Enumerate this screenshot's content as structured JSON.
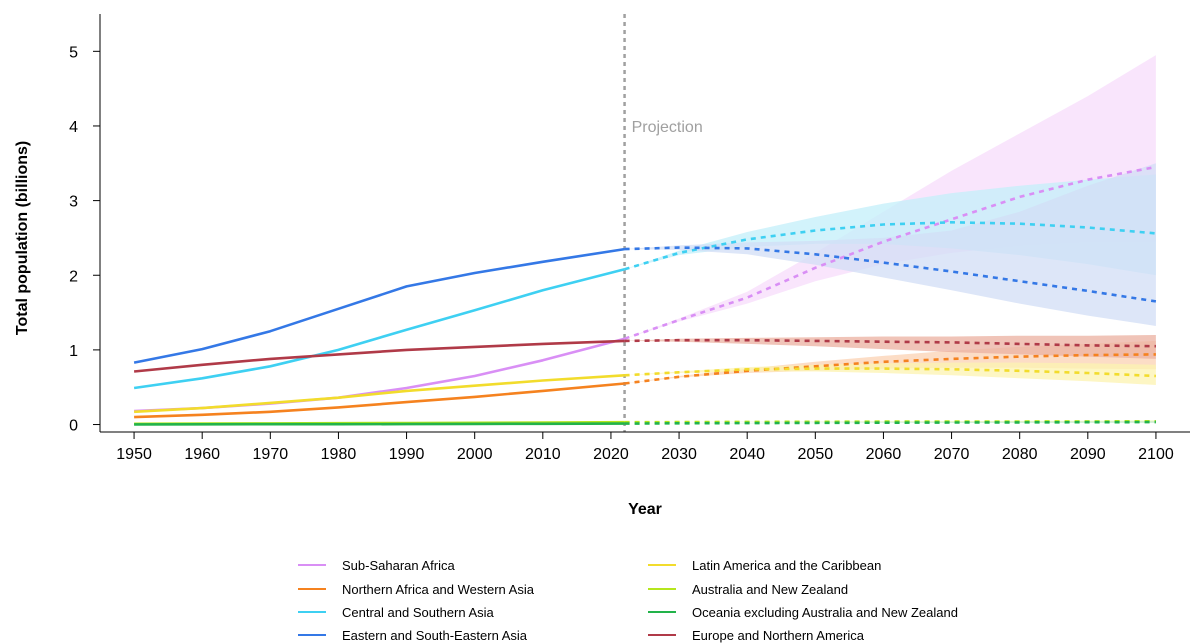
{
  "chart_data": {
    "type": "line",
    "xlabel": "Year",
    "ylabel": "Total population (billions)",
    "xlim": [
      1945,
      2105
    ],
    "ylim": [
      -0.1,
      5.5
    ],
    "x_ticks": [
      1950,
      1960,
      1970,
      1980,
      1990,
      2000,
      2010,
      2020,
      2030,
      2040,
      2050,
      2060,
      2070,
      2080,
      2090,
      2100
    ],
    "y_ticks": [
      0,
      1,
      2,
      3,
      4,
      5
    ],
    "grid": false,
    "legend_position": "bottom",
    "projection_start": 2022,
    "annotation": "Projection",
    "observed_x": [
      1950,
      1960,
      1970,
      1980,
      1990,
      2000,
      2010,
      2022
    ],
    "projected_x": [
      2022,
      2030,
      2040,
      2050,
      2060,
      2070,
      2080,
      2090,
      2100
    ],
    "series": [
      {
        "name": "Sub-Saharan Africa",
        "color": "#d98ff5",
        "band_color": "#f7dcfb",
        "observed": [
          0.18,
          0.22,
          0.28,
          0.36,
          0.49,
          0.65,
          0.86,
          1.15
        ],
        "projected": [
          1.15,
          1.4,
          1.7,
          2.1,
          2.45,
          2.75,
          3.05,
          3.28,
          3.45
        ],
        "lower": [
          1.15,
          1.38,
          1.62,
          1.92,
          2.15,
          2.3,
          2.4,
          2.45,
          2.45
        ],
        "upper": [
          1.15,
          1.42,
          1.78,
          2.3,
          2.85,
          3.4,
          3.9,
          4.4,
          4.95
        ]
      },
      {
        "name": "Northern Africa and Western Asia",
        "color": "#f5821f",
        "band_color": "#fbd2b3",
        "observed": [
          0.1,
          0.13,
          0.17,
          0.23,
          0.3,
          0.37,
          0.45,
          0.55
        ],
        "projected": [
          0.55,
          0.64,
          0.72,
          0.78,
          0.84,
          0.88,
          0.91,
          0.93,
          0.94
        ],
        "lower": [
          0.55,
          0.63,
          0.69,
          0.72,
          0.75,
          0.76,
          0.76,
          0.75,
          0.74
        ],
        "upper": [
          0.55,
          0.65,
          0.75,
          0.84,
          0.92,
          0.99,
          1.04,
          1.08,
          1.12
        ]
      },
      {
        "name": "Central and Southern Asia",
        "color": "#3ed0f2",
        "band_color": "#c3eff9",
        "observed": [
          0.49,
          0.62,
          0.78,
          1.0,
          1.27,
          1.53,
          1.8,
          2.08
        ],
        "projected": [
          2.08,
          2.3,
          2.48,
          2.6,
          2.68,
          2.71,
          2.69,
          2.64,
          2.56
        ],
        "lower": [
          2.08,
          2.27,
          2.38,
          2.42,
          2.42,
          2.36,
          2.27,
          2.15,
          2.0
        ],
        "upper": [
          2.08,
          2.33,
          2.58,
          2.78,
          2.96,
          3.1,
          3.2,
          3.28,
          3.35
        ]
      },
      {
        "name": "Eastern and South-Eastern Asia",
        "color": "#3478e6",
        "band_color": "#d2def6",
        "observed": [
          0.83,
          1.01,
          1.25,
          1.55,
          1.85,
          2.03,
          2.18,
          2.35
        ],
        "projected": [
          2.35,
          2.37,
          2.36,
          2.28,
          2.17,
          2.05,
          1.92,
          1.79,
          1.65
        ],
        "lower": [
          2.35,
          2.34,
          2.28,
          2.14,
          1.97,
          1.8,
          1.62,
          1.46,
          1.32
        ],
        "upper": [
          2.35,
          2.4,
          2.44,
          2.46,
          2.5,
          2.6,
          2.85,
          3.2,
          3.5
        ]
      },
      {
        "name": "Latin America and the Caribbean",
        "color": "#f2dc2c",
        "band_color": "#fcf3b0",
        "observed": [
          0.17,
          0.22,
          0.29,
          0.36,
          0.45,
          0.52,
          0.59,
          0.66
        ],
        "projected": [
          0.66,
          0.7,
          0.74,
          0.75,
          0.75,
          0.74,
          0.72,
          0.69,
          0.65
        ],
        "lower": [
          0.66,
          0.69,
          0.71,
          0.71,
          0.69,
          0.66,
          0.62,
          0.58,
          0.53
        ],
        "upper": [
          0.66,
          0.71,
          0.77,
          0.8,
          0.82,
          0.83,
          0.83,
          0.82,
          0.8
        ]
      },
      {
        "name": "Australia and New Zealand",
        "color": "#b5e61d",
        "band_color": "#e6f6b0",
        "observed": [
          0.01,
          0.012,
          0.015,
          0.018,
          0.02,
          0.023,
          0.026,
          0.031
        ],
        "projected": [
          0.031,
          0.033,
          0.035,
          0.037,
          0.039,
          0.04,
          0.041,
          0.042,
          0.043
        ],
        "lower": [
          0.031,
          0.032,
          0.033,
          0.034,
          0.034,
          0.034,
          0.034,
          0.034,
          0.034
        ],
        "upper": [
          0.031,
          0.034,
          0.037,
          0.04,
          0.043,
          0.046,
          0.049,
          0.052,
          0.055
        ]
      },
      {
        "name": "Oceania excluding Australia and New Zealand",
        "color": "#22b34a",
        "band_color": "#bde8c8",
        "observed": [
          0.002,
          0.003,
          0.004,
          0.005,
          0.006,
          0.008,
          0.01,
          0.013
        ],
        "projected": [
          0.013,
          0.016,
          0.019,
          0.022,
          0.025,
          0.027,
          0.029,
          0.031,
          0.032
        ],
        "lower": [
          0.013,
          0.015,
          0.017,
          0.019,
          0.02,
          0.021,
          0.022,
          0.022,
          0.022
        ],
        "upper": [
          0.013,
          0.017,
          0.021,
          0.025,
          0.029,
          0.033,
          0.036,
          0.039,
          0.042
        ]
      },
      {
        "name": "Europe and Northern America",
        "color": "#b03a48",
        "band_color": "#ebb0a0",
        "observed": [
          0.71,
          0.8,
          0.88,
          0.94,
          1.0,
          1.04,
          1.08,
          1.12
        ],
        "projected": [
          1.12,
          1.13,
          1.13,
          1.12,
          1.11,
          1.1,
          1.08,
          1.06,
          1.05
        ],
        "lower": [
          1.12,
          1.11,
          1.08,
          1.05,
          1.01,
          0.97,
          0.94,
          0.91,
          0.88
        ],
        "upper": [
          1.12,
          1.15,
          1.16,
          1.17,
          1.18,
          1.18,
          1.19,
          1.19,
          1.2
        ]
      }
    ]
  }
}
